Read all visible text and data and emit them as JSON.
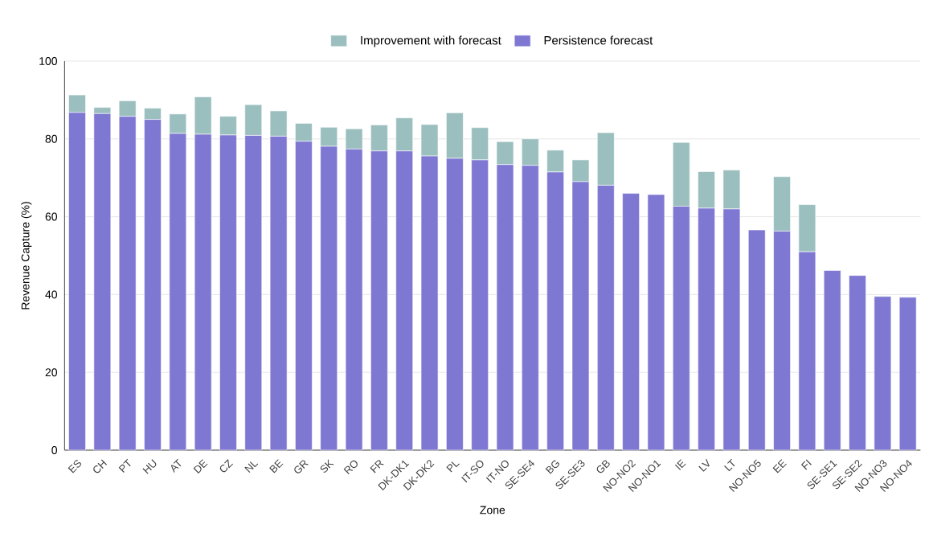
{
  "chart_data": {
    "type": "bar",
    "stacked": true,
    "xlabel": "Zone",
    "ylabel": "Revenue Capture (%)",
    "categories": [
      "ES",
      "CH",
      "PT",
      "HU",
      "AT",
      "DE",
      "CZ",
      "NL",
      "BE",
      "GR",
      "SK",
      "RO",
      "FR",
      "DK-DK1",
      "DK-DK2",
      "PL",
      "IT-SO",
      "IT-NO",
      "SE-SE4",
      "BG",
      "SE-SE3",
      "GB",
      "NO-NO2",
      "NO-NO1",
      "IE",
      "LV",
      "LT",
      "NO-NO5",
      "EE",
      "FI",
      "SE-SE1",
      "SE-SE2",
      "NO-NO3",
      "NO-NO4"
    ],
    "series": [
      {
        "name": "Persistence forecast",
        "color": "#7e78d2",
        "values": [
          86.8,
          86.5,
          85.8,
          85.0,
          81.4,
          81.2,
          81.0,
          80.9,
          80.7,
          79.4,
          78.1,
          77.4,
          76.9,
          76.9,
          75.6,
          75.0,
          74.6,
          73.4,
          73.2,
          71.5,
          69.0,
          68.1,
          66.0,
          65.7,
          62.7,
          62.2,
          62.0,
          56.6,
          56.3,
          51.0,
          46.2,
          44.9,
          39.5,
          39.3
        ]
      },
      {
        "name": "Improvement with forecast",
        "color": "#9bbfbf",
        "values": [
          4.5,
          1.6,
          4.0,
          2.9,
          5.0,
          9.6,
          4.8,
          7.9,
          6.5,
          4.6,
          4.9,
          5.2,
          6.7,
          8.5,
          8.1,
          11.7,
          8.3,
          5.9,
          6.8,
          5.6,
          5.6,
          13.5,
          0,
          0,
          16.4,
          9.4,
          10.0,
          0,
          14.0,
          12.1,
          0,
          0,
          0,
          0
        ]
      }
    ],
    "ylim": [
      0,
      100
    ],
    "yticks": [
      0,
      20,
      40,
      60,
      80,
      100
    ],
    "grid": "y",
    "legend": "top"
  }
}
